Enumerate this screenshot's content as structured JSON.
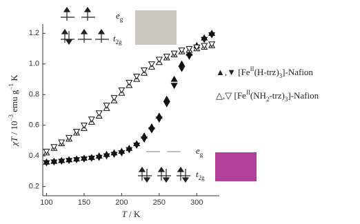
{
  "chart_data": {
    "type": "scatter",
    "x": [
      100,
      110,
      120,
      130,
      140,
      150,
      160,
      170,
      180,
      190,
      200,
      210,
      220,
      230,
      240,
      250,
      260,
      270,
      280,
      290,
      300,
      310,
      320
    ],
    "series": [
      {
        "marker": "triangle-up",
        "filled": true,
        "color": "#111111",
        "values": [
          0.36,
          0.365,
          0.37,
          0.375,
          0.38,
          0.385,
          0.39,
          0.4,
          0.41,
          0.42,
          0.43,
          0.45,
          0.48,
          0.53,
          0.59,
          0.66,
          0.77,
          0.9,
          1.0,
          1.07,
          1.12,
          1.17,
          1.2
        ]
      },
      {
        "marker": "triangle-down",
        "filled": true,
        "color": "#111111",
        "values": [
          0.355,
          0.36,
          0.365,
          0.37,
          0.375,
          0.38,
          0.385,
          0.39,
          0.4,
          0.41,
          0.42,
          0.44,
          0.47,
          0.51,
          0.57,
          0.64,
          0.74,
          0.86,
          0.97,
          1.05,
          1.11,
          1.16,
          1.19
        ]
      },
      {
        "marker": "triangle-up",
        "filled": false,
        "color": "#111111",
        "values": [
          0.42,
          0.45,
          0.48,
          0.51,
          0.55,
          0.58,
          0.62,
          0.66,
          0.71,
          0.76,
          0.81,
          0.86,
          0.9,
          0.94,
          0.98,
          1.01,
          1.04,
          1.06,
          1.08,
          1.09,
          1.1,
          1.11,
          1.12
        ]
      },
      {
        "marker": "triangle-down",
        "filled": false,
        "color": "#111111",
        "values": [
          0.43,
          0.46,
          0.49,
          0.52,
          0.56,
          0.6,
          0.64,
          0.68,
          0.73,
          0.78,
          0.83,
          0.88,
          0.92,
          0.96,
          1.0,
          1.03,
          1.05,
          1.07,
          1.09,
          1.1,
          1.11,
          1.12,
          1.13
        ]
      }
    ],
    "xlim": [
      95,
      330
    ],
    "ylim": [
      0.14,
      1.26
    ],
    "xticks": [
      100,
      150,
      200,
      250,
      300
    ],
    "yticks": [
      0.2,
      0.4,
      0.6,
      0.8,
      {
        "value": 1.0,
        "label": "1.0"
      },
      1.2
    ],
    "xlabel": [
      {
        "text": "T",
        "italic": true
      },
      {
        "text": " / K"
      }
    ],
    "ylabel": [
      {
        "text": "χT",
        "italic": true
      },
      {
        "text": " / 10"
      },
      {
        "text": "−3",
        "shift": "super"
      },
      {
        "text": " emu g"
      },
      {
        "text": "−1",
        "shift": "super"
      },
      {
        "text": " K"
      }
    ],
    "legend": [
      [
        {
          "text": "▲,▼ [Fe"
        },
        {
          "text": "II",
          "shift": "super"
        },
        {
          "text": "(H-trz)"
        },
        {
          "text": "3",
          "shift": "sub"
        },
        {
          "text": "]-Nafion"
        }
      ],
      [
        {
          "text": "△,▽ [Fe"
        },
        {
          "text": "II",
          "shift": "super"
        },
        {
          "text": "(NH"
        },
        {
          "text": "2",
          "shift": "sub"
        },
        {
          "text": "-trz)"
        },
        {
          "text": "3",
          "shift": "sub"
        },
        {
          "text": "]-Nafion"
        }
      ]
    ],
    "annotations": {
      "high_eg": [
        {
          "text": "e",
          "italic": true
        },
        {
          "text": "g",
          "shift": "sub"
        }
      ],
      "high_t2g": [
        {
          "text": "t",
          "italic": true
        },
        {
          "text": "2g",
          "shift": "sub"
        }
      ],
      "low_eg": [
        {
          "text": "e",
          "italic": true
        },
        {
          "text": "g",
          "shift": "sub"
        }
      ],
      "low_t2g": [
        {
          "text": "t",
          "italic": true
        },
        {
          "text": "2g",
          "shift": "sub"
        }
      ]
    }
  }
}
